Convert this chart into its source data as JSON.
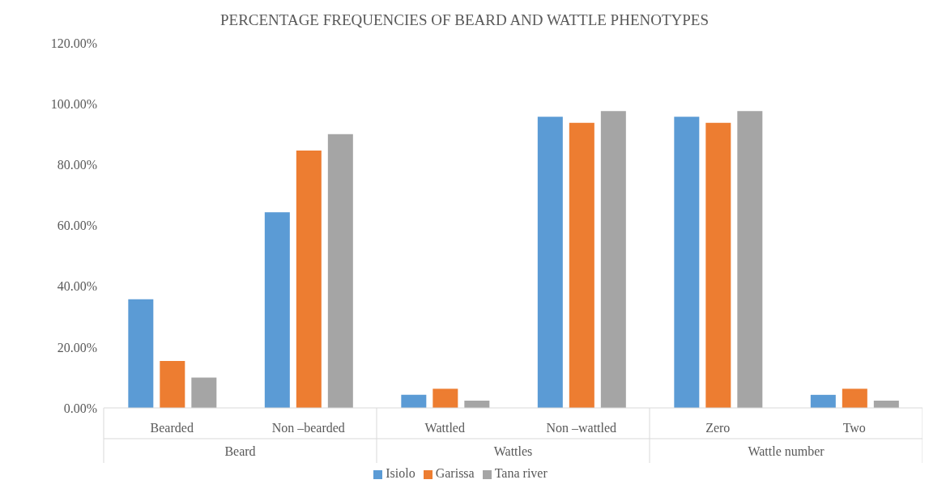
{
  "chart_data": {
    "type": "bar",
    "title": "PERCENTAGE FREQUENCIES OF BEARD AND WATTLE PHENOTYPES",
    "categories": [
      "Bearded",
      "Non –bearded",
      "Wattled",
      "Non –wattled",
      "Zero",
      "Two"
    ],
    "series": [
      {
        "name": "Isiolo",
        "color": "#5b9bd5",
        "values": [
          35.7,
          64.3,
          4.3,
          95.7,
          95.7,
          4.3
        ]
      },
      {
        "name": "Garissa",
        "color": "#ed7d31",
        "values": [
          15.4,
          84.6,
          6.3,
          93.7,
          93.7,
          6.3
        ]
      },
      {
        "name": "Tana river",
        "color": "#a5a5a5",
        "values": [
          10,
          90,
          2.4,
          97.6,
          97.6,
          2.4
        ]
      }
    ],
    "ylim": [
      0,
      120
    ],
    "yticks": [
      {
        "value": 0,
        "label": "0.00%"
      },
      {
        "value": 20,
        "label": "20.00%"
      },
      {
        "value": 40,
        "label": "40.00%"
      },
      {
        "value": 60,
        "label": "60.00%"
      },
      {
        "value": 80,
        "label": "80.00%"
      },
      {
        "value": 100,
        "label": "100.00%"
      },
      {
        "value": 120,
        "label": "120.00%"
      }
    ],
    "annotations": [
      "Beard",
      "Wattles",
      "Wattle number"
    ],
    "grid": false,
    "legend": "bottom"
  }
}
